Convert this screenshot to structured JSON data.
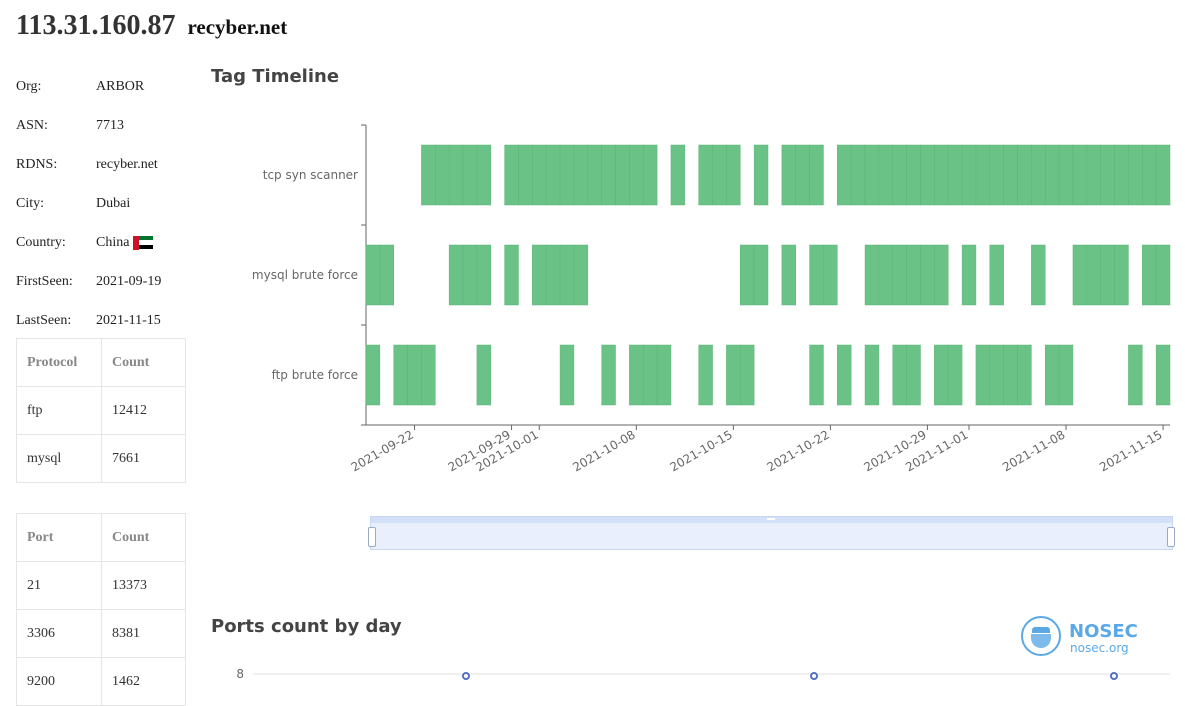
{
  "header": {
    "ip": "113.31.160.87",
    "domain": "recyber.net"
  },
  "info": [
    {
      "label": "Org:",
      "value": "ARBOR"
    },
    {
      "label": "ASN:",
      "value": "7713"
    },
    {
      "label": "RDNS:",
      "value": "recyber.net"
    },
    {
      "label": "City:",
      "value": "Dubai"
    },
    {
      "label": "Country:",
      "value": "China"
    },
    {
      "label": "FirstSeen:",
      "value": "2021-09-19"
    },
    {
      "label": "LastSeen:",
      "value": "2021-11-15"
    }
  ],
  "country_flag": "flag-icon",
  "protocol_table": {
    "headers": [
      "Protocol",
      "Count"
    ],
    "rows": [
      [
        "ftp",
        "12412"
      ],
      [
        "mysql",
        "7661"
      ]
    ]
  },
  "port_table": {
    "headers": [
      "Port",
      "Count"
    ],
    "rows": [
      [
        "21",
        "13373"
      ],
      [
        "3306",
        "8381"
      ],
      [
        "9200",
        "1462"
      ]
    ]
  },
  "sections": {
    "timeline_title": "Tag Timeline",
    "ports_title": "Ports count by day"
  },
  "logo": {
    "text": "NOSEC",
    "sub": "nosec.org"
  },
  "chart_data": [
    {
      "type": "timeline",
      "title": "Tag Timeline",
      "start": "2021-09-19",
      "end": "2021-11-15",
      "categories": [
        "tcp syn scanner",
        "mysql brute force",
        "ftp brute force"
      ],
      "x_ticks": [
        "2021-09-22",
        "2021-09-29",
        "2021-10-01",
        "2021-10-08",
        "2021-10-15",
        "2021-10-22",
        "2021-10-29",
        "2021-11-01",
        "2021-11-08",
        "2021-11-15"
      ],
      "series": [
        {
          "name": "tcp syn scanner",
          "dates": [
            "2021-09-23",
            "2021-09-24",
            "2021-09-25",
            "2021-09-26",
            "2021-09-27",
            "2021-09-29",
            "2021-09-30",
            "2021-10-01",
            "2021-10-02",
            "2021-10-03",
            "2021-10-04",
            "2021-10-05",
            "2021-10-06",
            "2021-10-07",
            "2021-10-08",
            "2021-10-09",
            "2021-10-11",
            "2021-10-13",
            "2021-10-14",
            "2021-10-15",
            "2021-10-17",
            "2021-10-19",
            "2021-10-20",
            "2021-10-21",
            "2021-10-23",
            "2021-10-24",
            "2021-10-25",
            "2021-10-26",
            "2021-10-27",
            "2021-10-28",
            "2021-10-29",
            "2021-10-30",
            "2021-10-31",
            "2021-11-01",
            "2021-11-02",
            "2021-11-03",
            "2021-11-04",
            "2021-11-05",
            "2021-11-06",
            "2021-11-07",
            "2021-11-08",
            "2021-11-09",
            "2021-11-10",
            "2021-11-11",
            "2021-11-12",
            "2021-11-13",
            "2021-11-14",
            "2021-11-15"
          ]
        },
        {
          "name": "mysql brute force",
          "dates": [
            "2021-09-19",
            "2021-09-20",
            "2021-09-25",
            "2021-09-26",
            "2021-09-27",
            "2021-09-29",
            "2021-10-01",
            "2021-10-02",
            "2021-10-03",
            "2021-10-04",
            "2021-10-16",
            "2021-10-17",
            "2021-10-19",
            "2021-10-21",
            "2021-10-22",
            "2021-10-25",
            "2021-10-26",
            "2021-10-27",
            "2021-10-28",
            "2021-10-29",
            "2021-10-30",
            "2021-11-01",
            "2021-11-03",
            "2021-11-06",
            "2021-11-09",
            "2021-11-10",
            "2021-11-11",
            "2021-11-12",
            "2021-11-14",
            "2021-11-15"
          ]
        },
        {
          "name": "ftp brute force",
          "dates": [
            "2021-09-19",
            "2021-09-21",
            "2021-09-22",
            "2021-09-23",
            "2021-09-27",
            "2021-10-03",
            "2021-10-06",
            "2021-10-08",
            "2021-10-09",
            "2021-10-10",
            "2021-10-13",
            "2021-10-15",
            "2021-10-16",
            "2021-10-21",
            "2021-10-23",
            "2021-10-25",
            "2021-10-27",
            "2021-10-28",
            "2021-10-30",
            "2021-10-31",
            "2021-11-02",
            "2021-11-03",
            "2021-11-04",
            "2021-11-05",
            "2021-11-07",
            "2021-11-08",
            "2021-11-13",
            "2021-11-15"
          ]
        }
      ]
    },
    {
      "type": "line",
      "title": "Ports count by day",
      "y_ticks": [
        "8"
      ]
    }
  ]
}
